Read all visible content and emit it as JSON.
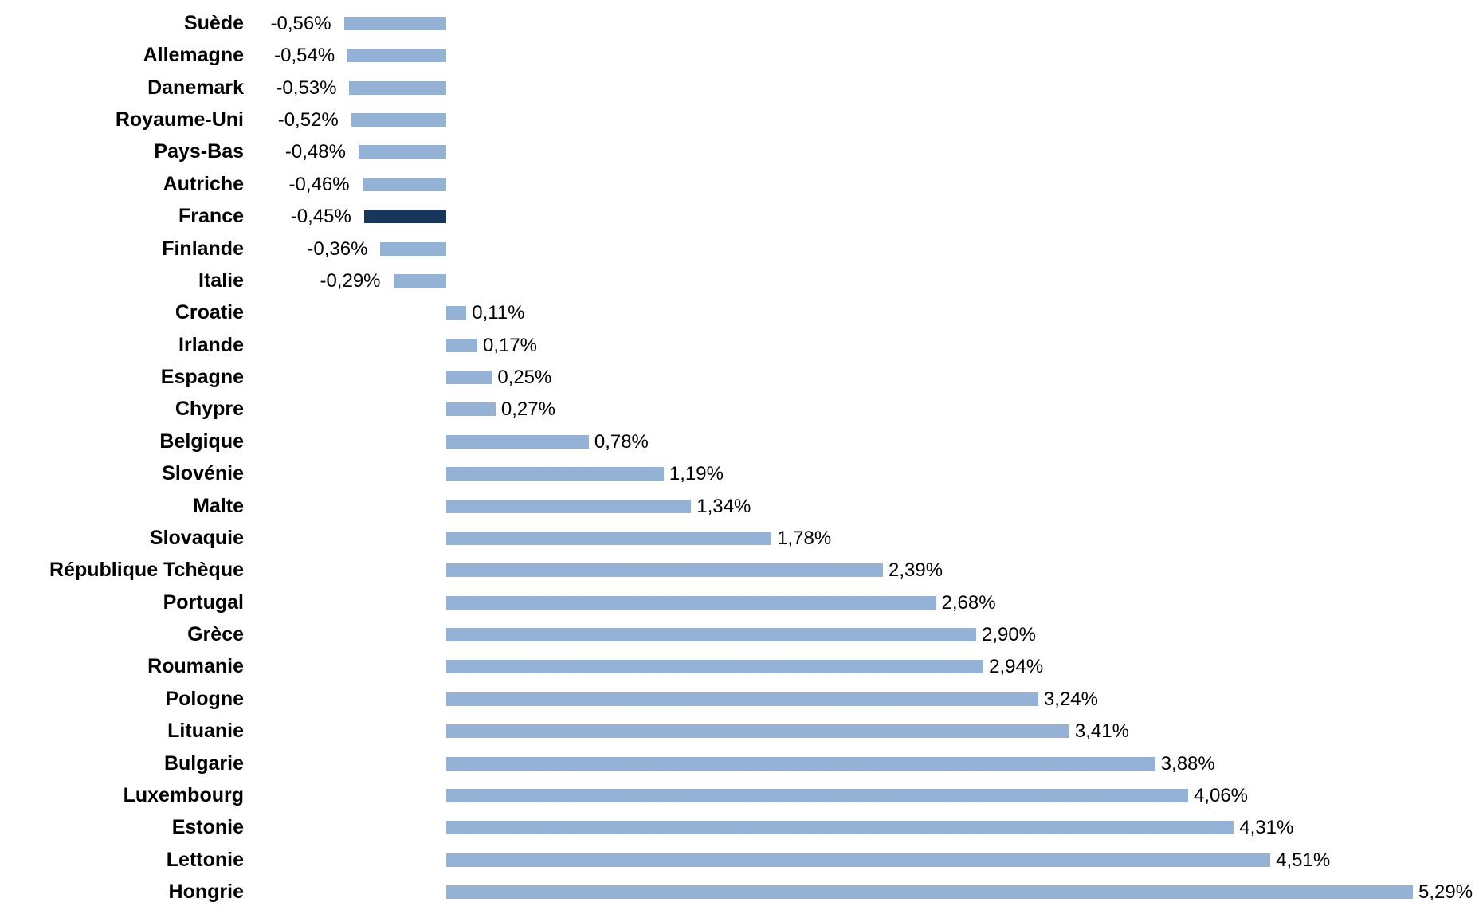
{
  "chart_data": {
    "type": "bar",
    "orientation": "horizontal",
    "title": "",
    "xlabel": "",
    "ylabel": "",
    "unit": "%",
    "xlim": [
      -0.8,
      5.65
    ],
    "grid": false,
    "legend": false,
    "decimal_separator": ",",
    "categories": [
      "Suède",
      "Allemagne",
      "Danemark",
      "Royaume-Uni",
      "Pays-Bas",
      "Autriche",
      "France",
      "Finlande",
      "Italie",
      "Croatie",
      "Irlande",
      "Espagne",
      "Chypre",
      "Belgique",
      "Slovénie",
      "Malte",
      "Slovaquie",
      "République Tchèque",
      "Portugal",
      "Grèce",
      "Roumanie",
      "Pologne",
      "Lituanie",
      "Bulgarie",
      "Luxembourg",
      "Estonie",
      "Lettonie",
      "Hongrie"
    ],
    "values": [
      -0.56,
      -0.54,
      -0.53,
      -0.52,
      -0.48,
      -0.46,
      -0.45,
      -0.36,
      -0.29,
      0.11,
      0.17,
      0.25,
      0.27,
      0.78,
      1.19,
      1.34,
      1.78,
      2.39,
      2.68,
      2.9,
      2.94,
      3.24,
      3.41,
      3.88,
      4.06,
      4.31,
      4.51,
      5.29
    ],
    "labels": [
      "-0,56%",
      "-0,54%",
      "-0,53%",
      "-0,52%",
      "-0,48%",
      "-0,46%",
      "-0,45%",
      "-0,36%",
      "-0,29%",
      "0,11%",
      "0,17%",
      "0,25%",
      "0,27%",
      "0,78%",
      "1,19%",
      "1,34%",
      "1,78%",
      "2,39%",
      "2,68%",
      "2,90%",
      "2,94%",
      "3,24%",
      "3,41%",
      "3,88%",
      "4,06%",
      "4,31%",
      "4,51%",
      "5,29%"
    ],
    "highlight_category": "France",
    "colors": {
      "bar": "#94B2D6",
      "highlight": "#16365C",
      "text": "#000000",
      "background": "#FFFFFF"
    }
  }
}
